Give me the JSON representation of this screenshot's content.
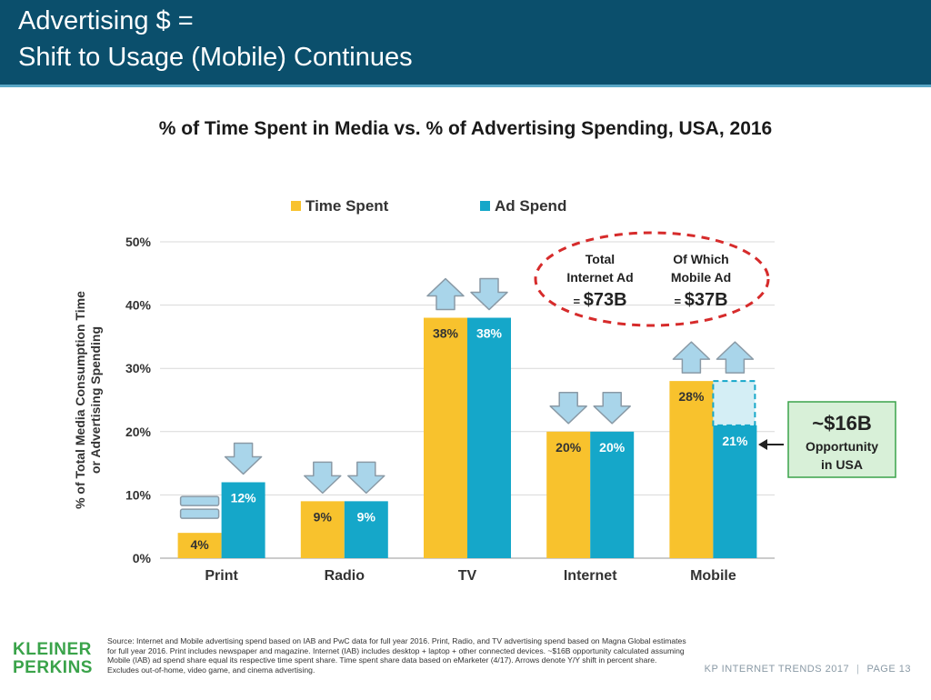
{
  "header": {
    "title_line1": "Advertising $ =",
    "title_line2": "Shift to Usage (Mobile) Continues"
  },
  "chart_title": "% of Time Spent in Media vs. % of Advertising Spending, USA, 2016",
  "colors": {
    "time_spent": "#f8c22d",
    "ad_spend": "#15a7c9",
    "header_bg": "#0b4f6c",
    "arrow_fill": "#a9d5ea",
    "callout_bg": "#d8f0d8",
    "callout_border": "#3aa34a",
    "ellipse": "#d62b2b",
    "logo": "#3aa34a"
  },
  "chart_data": {
    "type": "bar",
    "title": "% of Time Spent in Media vs. % of Advertising Spending, USA, 2016",
    "categories": [
      "Print",
      "Radio",
      "TV",
      "Internet",
      "Mobile"
    ],
    "series": [
      {
        "name": "Time Spent",
        "values": [
          4,
          9,
          38,
          20,
          28
        ],
        "labels": [
          "4%",
          "9%",
          "38%",
          "20%",
          "28%"
        ]
      },
      {
        "name": "Ad Spend",
        "values": [
          12,
          9,
          38,
          20,
          21
        ],
        "labels": [
          "12%",
          "9%",
          "38%",
          "20%",
          "21%"
        ]
      }
    ],
    "ylabel": "% of Total Media Consumption Time or Advertising Spending",
    "ylabel_line1": "% of Total Media Consumption Time",
    "ylabel_line2": "or Advertising Spending",
    "ylim": [
      0,
      50
    ],
    "yticks": [
      "0%",
      "10%",
      "20%",
      "30%",
      "40%",
      "50%"
    ],
    "grid": true,
    "legend_position": "top",
    "arrows": [
      {
        "category": "Print",
        "series": "Time Spent",
        "direction": "flat"
      },
      {
        "category": "Print",
        "series": "Ad Spend",
        "direction": "down"
      },
      {
        "category": "Radio",
        "series": "Time Spent",
        "direction": "down"
      },
      {
        "category": "Radio",
        "series": "Ad Spend",
        "direction": "down"
      },
      {
        "category": "TV",
        "series": "Time Spent",
        "direction": "up"
      },
      {
        "category": "TV",
        "series": "Ad Spend",
        "direction": "down"
      },
      {
        "category": "Internet",
        "series": "Time Spent",
        "direction": "down"
      },
      {
        "category": "Internet",
        "series": "Ad Spend",
        "direction": "down"
      },
      {
        "category": "Mobile",
        "series": "Time Spent",
        "direction": "up"
      },
      {
        "category": "Mobile",
        "series": "Ad Spend",
        "direction": "up"
      }
    ],
    "mobile_gap": {
      "from": 21,
      "to": 28
    },
    "annotations": {
      "ellipse": {
        "left": {
          "line1": "Total",
          "line2": "Internet Ad",
          "prefix": "=",
          "value": "$73B"
        },
        "right": {
          "line1": "Of Which",
          "line2": "Mobile Ad",
          "prefix": "=",
          "value": "$37B"
        }
      },
      "callout": {
        "value": "~$16B",
        "line1": "Opportunity",
        "line2": "in USA"
      }
    }
  },
  "source_text": "Source: Internet and Mobile advertising spend based on IAB and PwC data for full year 2016. Print, Radio, and TV advertising spend based on Magna Global estimates for full year 2016. Print includes newspaper and magazine. Internet (IAB) includes desktop + laptop + other connected devices. ~$16B opportunity calculated assuming Mobile (IAB) ad spend share equal its respective time spent share. Time spent share data based on eMarketer (4/17). Arrows denote Y/Y shift in percent share. Excludes out-of-home, video game, and cinema advertising.",
  "logo": {
    "line1": "KLEINER",
    "line2": "PERKINS"
  },
  "footer": {
    "left": "KP INTERNET TRENDS 2017",
    "sep": "|",
    "right": "PAGE 13"
  }
}
